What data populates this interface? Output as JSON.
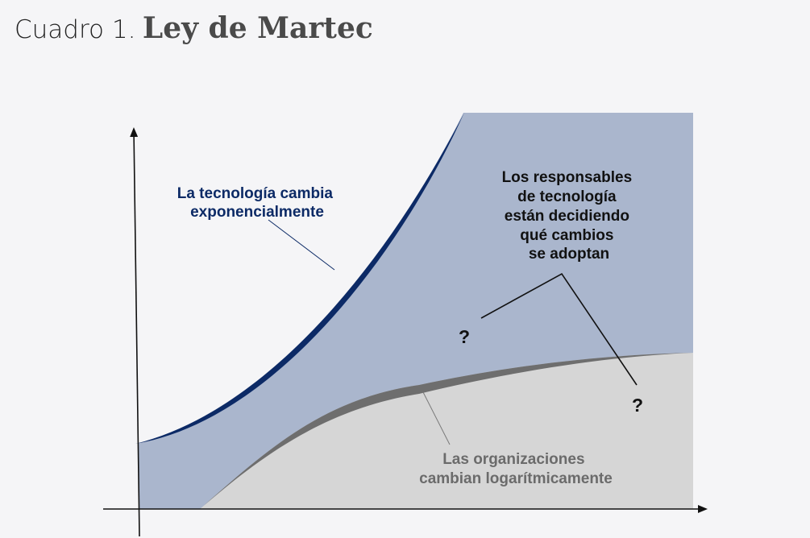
{
  "title": {
    "prefix": "Cuadro 1.",
    "main": "Ley de Martec"
  },
  "labels": {
    "technology": [
      "La tecnología cambia",
      "exponencialmente"
    ],
    "organizations": [
      "Las organizaciones",
      "cambian logarítmicamente"
    ],
    "leaders": [
      "Los responsables",
      "de tecnología",
      "están decidiendo",
      "qué cambios",
      "se adoptan"
    ],
    "question_upper": "?",
    "question_lower": "?"
  },
  "colors": {
    "technology_fill": "#aab6cd",
    "technology_curve": "#0c2a66",
    "organizations_fill": "#d6d6d6",
    "organizations_curve": "#6e6e6e",
    "technology_label": "#0c2a66",
    "organizations_label": "#6b6b6b",
    "leaders_label": "#111111"
  }
}
